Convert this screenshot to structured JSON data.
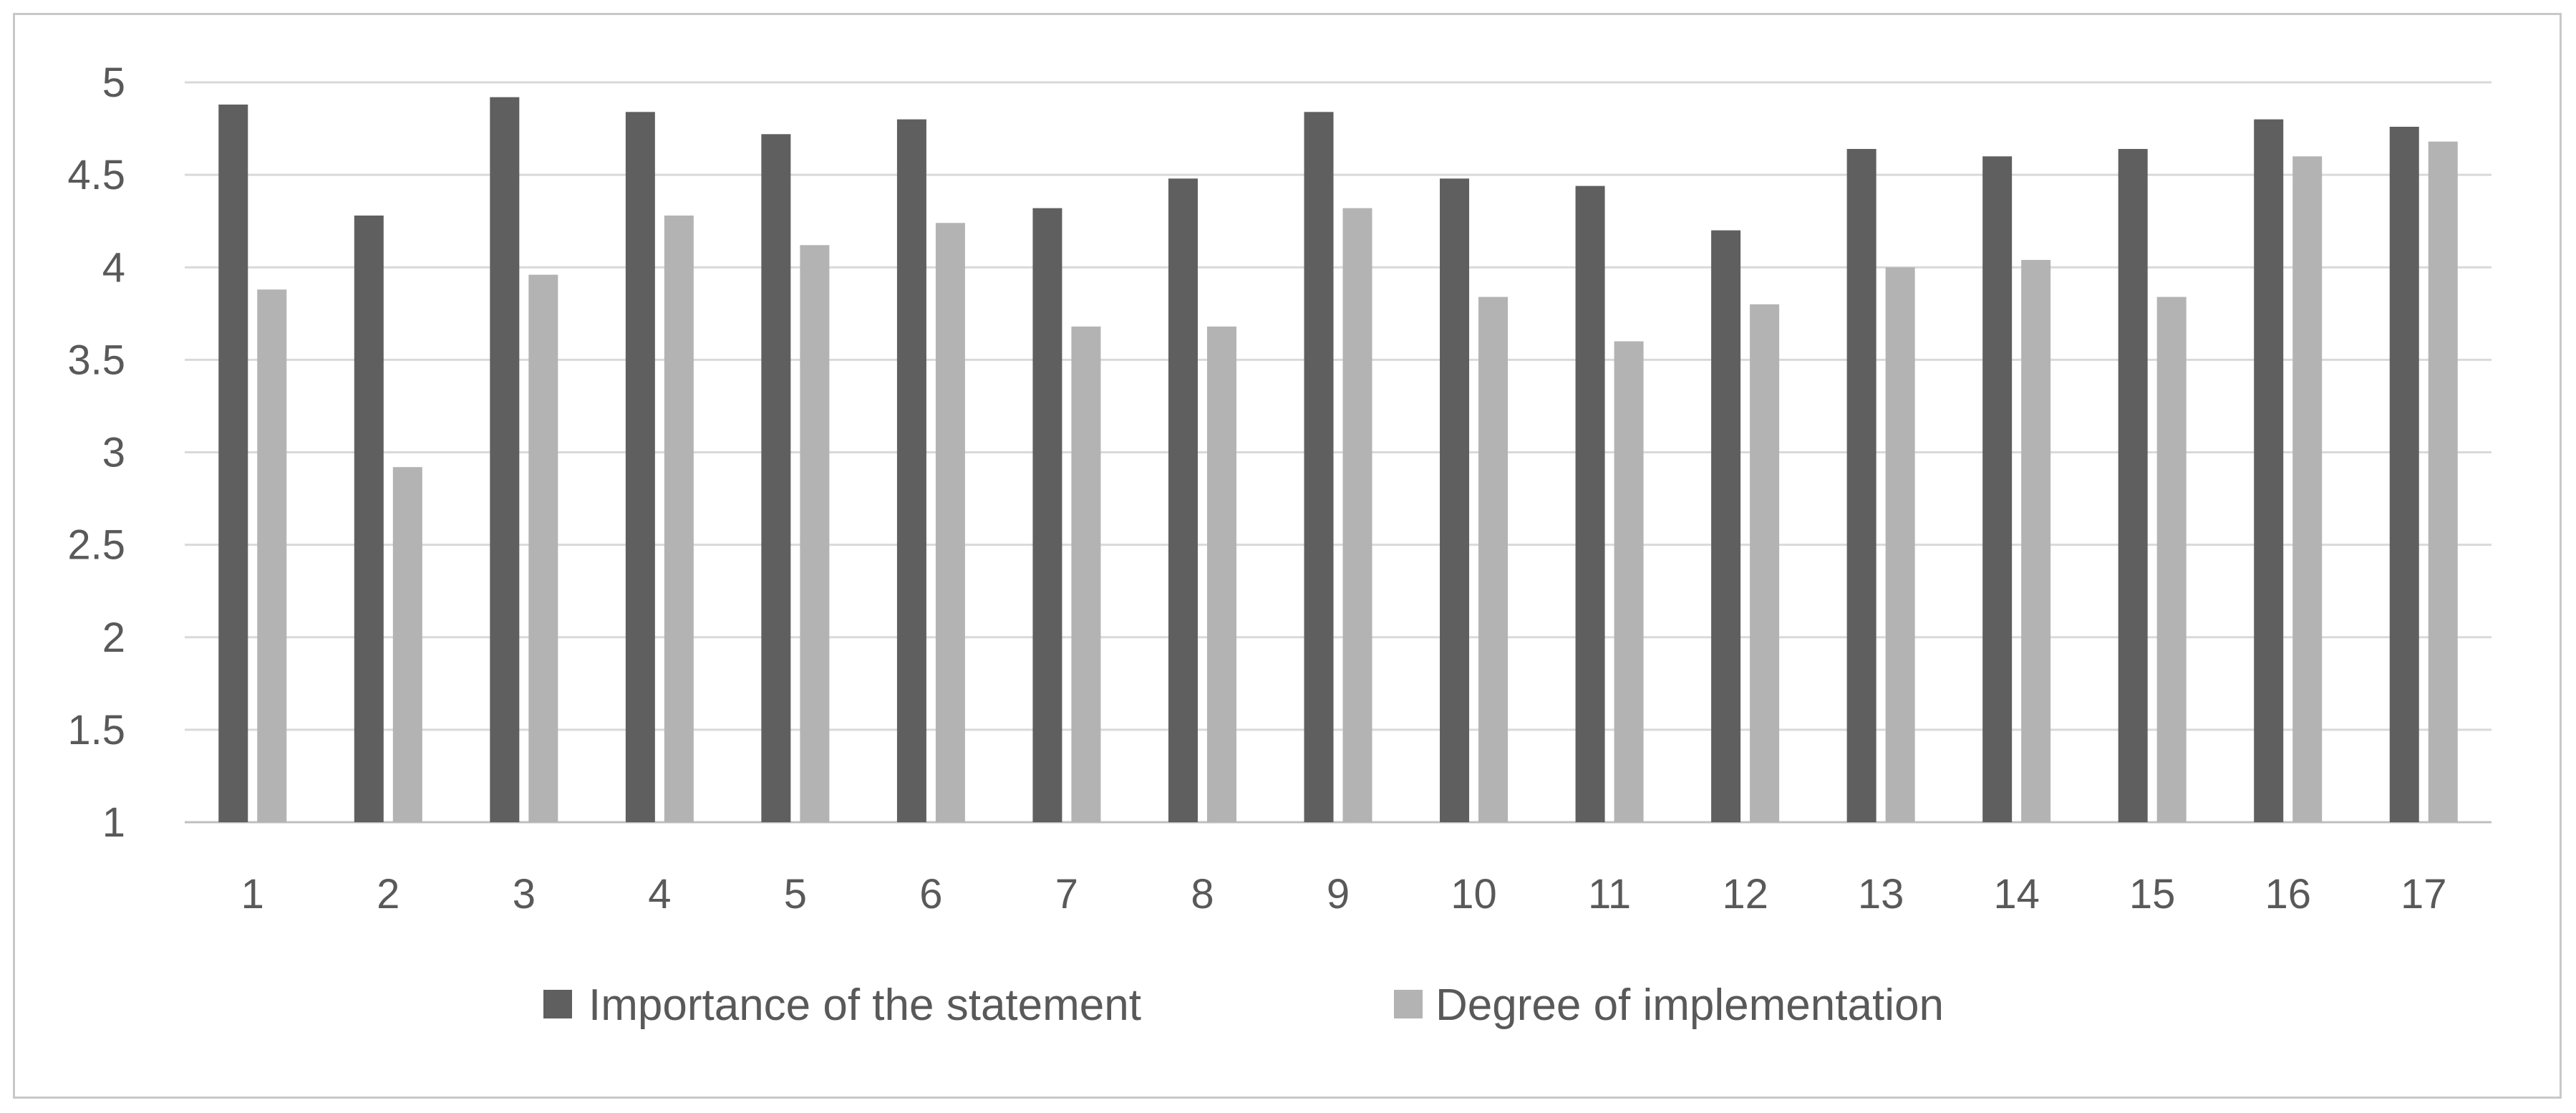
{
  "chart_data": {
    "type": "bar",
    "title": "",
    "xlabel": "",
    "ylabel": "",
    "ylim": [
      1,
      5
    ],
    "yticks": [
      "1",
      "1.5",
      "2",
      "2.5",
      "3",
      "3.5",
      "4",
      "4.5",
      "5"
    ],
    "grid": true,
    "legend_position": "bottom",
    "categories": [
      "1",
      "2",
      "3",
      "4",
      "5",
      "6",
      "7",
      "8",
      "9",
      "10",
      "11",
      "12",
      "13",
      "14",
      "15",
      "16",
      "17"
    ],
    "series": [
      {
        "name": "Importance of the statement",
        "color": "#5f5f5f",
        "values": [
          4.88,
          4.28,
          4.92,
          4.84,
          4.72,
          4.8,
          4.32,
          4.48,
          4.84,
          4.48,
          4.44,
          4.2,
          4.64,
          4.6,
          4.64,
          4.8,
          4.76
        ]
      },
      {
        "name": "Degree of implementation",
        "color": "#b3b3b3",
        "values": [
          3.88,
          2.92,
          3.96,
          4.28,
          4.12,
          4.24,
          3.68,
          3.68,
          4.32,
          3.84,
          3.6,
          3.8,
          4.0,
          4.04,
          3.84,
          4.6,
          4.68
        ]
      }
    ]
  }
}
